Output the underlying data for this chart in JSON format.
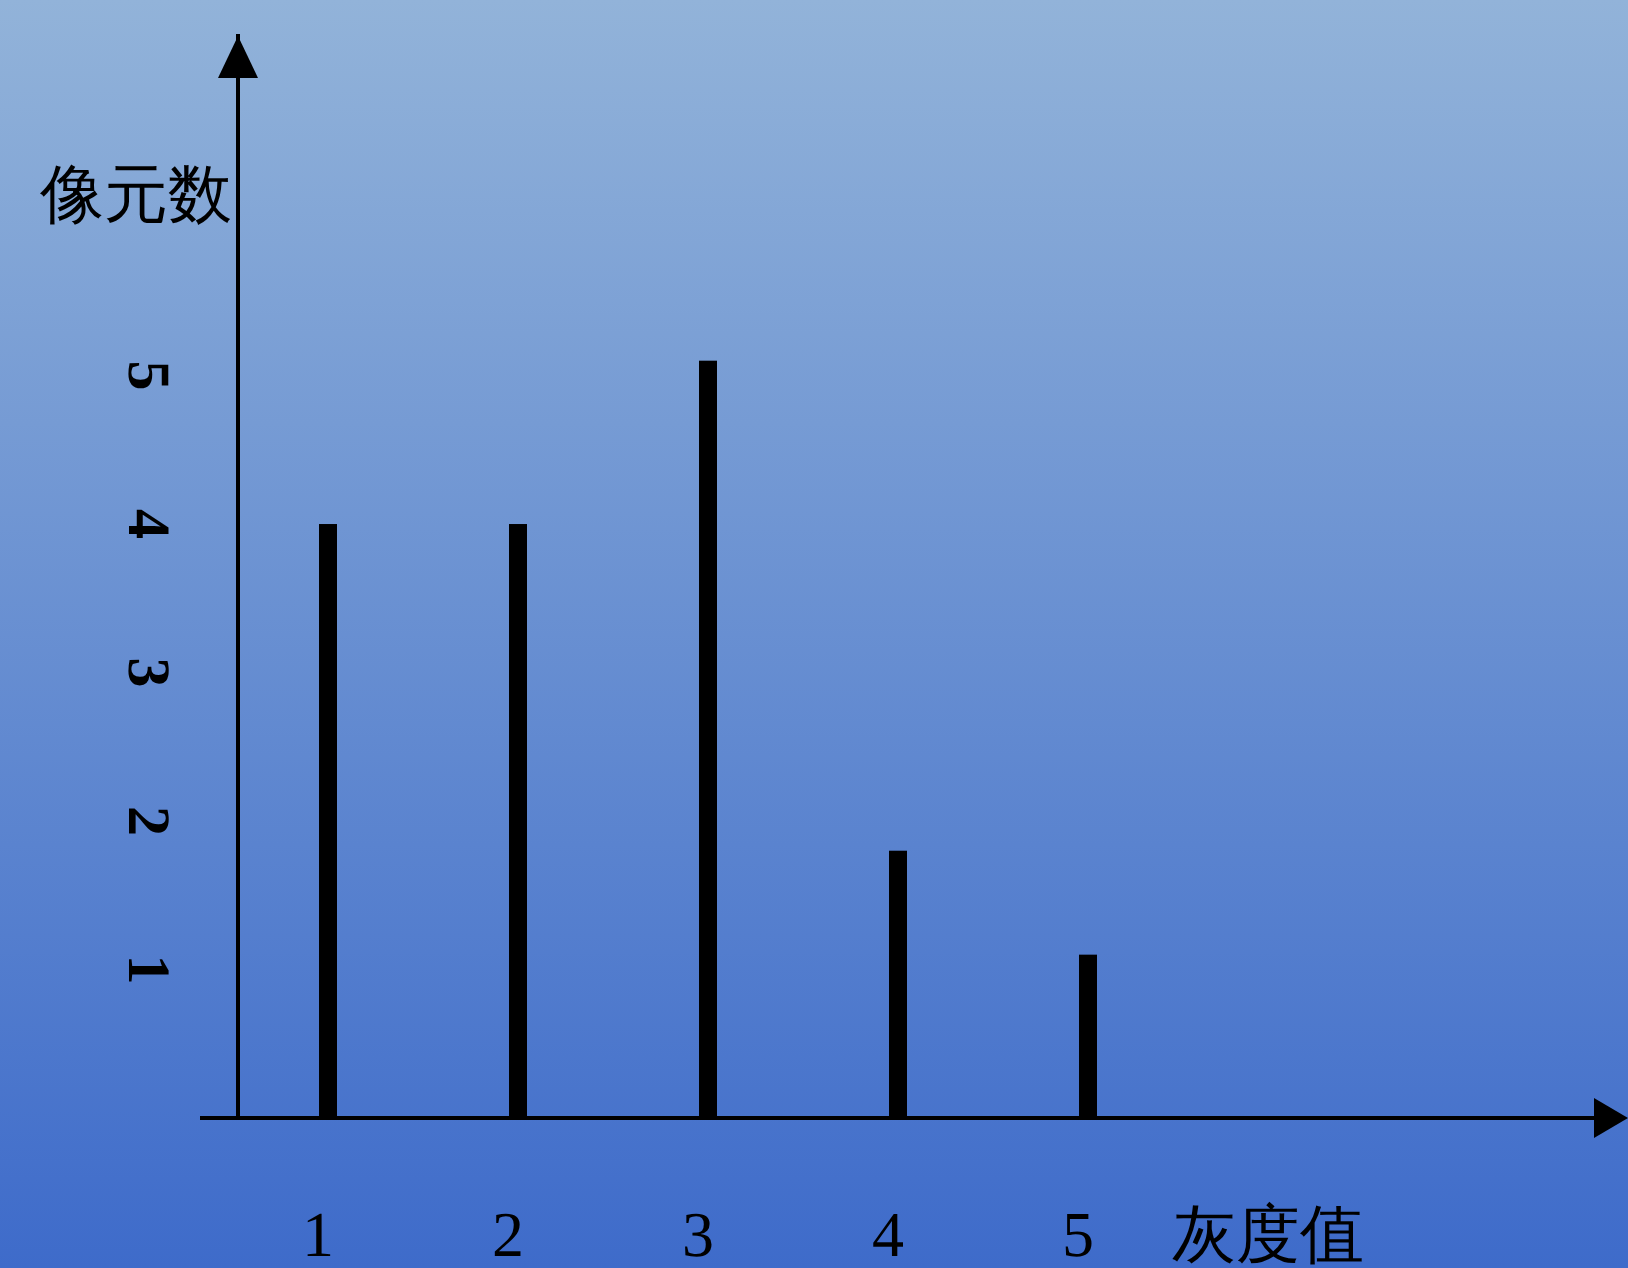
{
  "chart_data": {
    "type": "bar",
    "xlabel": "灰度值",
    "ylabel": "像元数",
    "categories": [
      "1",
      "2",
      "3",
      "4",
      "5"
    ],
    "values": [
      4.0,
      4.0,
      5.1,
      1.8,
      1.1
    ],
    "color": "#000000",
    "ylim": [
      0,
      7.3
    ],
    "yticks": [
      1,
      2,
      3,
      4,
      5
    ]
  }
}
